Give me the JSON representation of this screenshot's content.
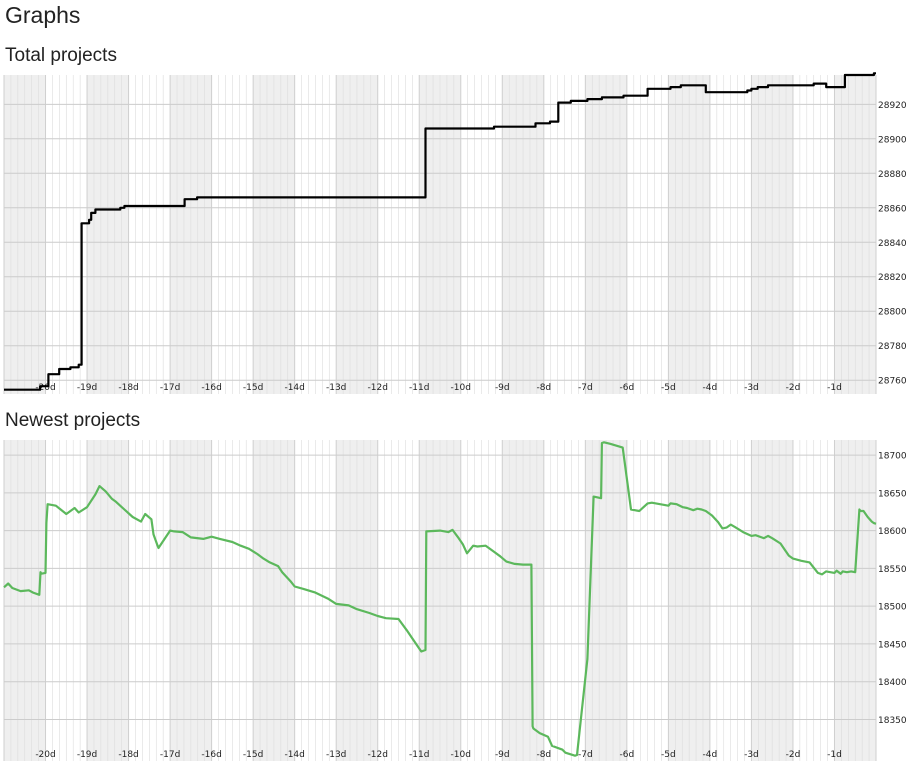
{
  "page": {
    "title": "Graphs"
  },
  "chart_data": [
    {
      "type": "line",
      "title": "Total projects",
      "color": "#000000",
      "xlabel": "",
      "ylabel": "",
      "xlim": [
        -21,
        0
      ],
      "ylim": [
        28752,
        28937
      ],
      "x_ticks": [
        -20,
        -19,
        -18,
        -17,
        -16,
        -15,
        -14,
        -13,
        -12,
        -11,
        -10,
        -9,
        -8,
        -7,
        -6,
        -5,
        -4,
        -3,
        -2,
        -1
      ],
      "x_tick_labels": [
        "-20d",
        "-19d",
        "-18d",
        "-17d",
        "-16d",
        "-15d",
        "-14d",
        "-13d",
        "-12d",
        "-11d",
        "-10d",
        "-9d",
        "-8d",
        "-7d",
        "-6d",
        "-5d",
        "-4d",
        "-3d",
        "-2d",
        "-1d"
      ],
      "y_ticks": [
        28760,
        28780,
        28800,
        28820,
        28840,
        28860,
        28880,
        28900,
        28920
      ],
      "y_tick_labels": [
        "28760",
        "28780",
        "28800",
        "28820",
        "28840",
        "28860",
        "28880",
        "28900",
        "28920"
      ],
      "shaded_day_ranges": [
        [
          -21,
          -20
        ],
        [
          -19,
          -18
        ],
        [
          -17,
          -16
        ],
        [
          -15,
          -14
        ],
        [
          -13,
          -12
        ],
        [
          -11,
          -10
        ],
        [
          -9,
          -8
        ],
        [
          -7,
          -6
        ],
        [
          -5,
          -4
        ],
        [
          -3,
          -2
        ],
        [
          -1,
          0
        ]
      ],
      "series": [
        {
          "name": "Total projects",
          "x": [
            -21.0,
            -20.13,
            -20.13,
            -19.93,
            -19.93,
            -19.67,
            -19.67,
            -19.4,
            -19.4,
            -19.2,
            -19.2,
            -19.13,
            -19.13,
            -18.95,
            -18.95,
            -18.9,
            -18.9,
            -18.8,
            -18.8,
            -18.2,
            -18.2,
            -18.1,
            -18.1,
            -17.92,
            -17.92,
            -16.65,
            -16.65,
            -16.35,
            -16.35,
            -10.85,
            -10.85,
            -9.2,
            -9.2,
            -8.2,
            -8.2,
            -7.85,
            -7.85,
            -7.65,
            -7.65,
            -7.35,
            -7.35,
            -6.95,
            -6.95,
            -6.6,
            -6.6,
            -6.08,
            -6.08,
            -5.5,
            -5.5,
            -4.95,
            -4.95,
            -4.7,
            -4.7,
            -4.1,
            -4.1,
            -3.1,
            -3.1,
            -3.0,
            -3.0,
            -2.85,
            -2.85,
            -2.6,
            -2.6,
            -1.5,
            -1.5,
            -1.2,
            -1.2,
            -0.75,
            -0.75,
            -0.65,
            -0.65,
            -0.05,
            -0.05,
            0.0
          ],
          "y": [
            28754.5,
            28754.5,
            28756.5,
            28756.5,
            28763.5,
            28763.5,
            28766.5,
            28766.5,
            28767.5,
            28767.5,
            28769,
            28769,
            28851,
            28851,
            28853,
            28853,
            28857,
            28857,
            28859,
            28859,
            28860,
            28860,
            28861,
            28861,
            28861,
            28861,
            28865,
            28865,
            28866,
            28866,
            28906,
            28906,
            28907,
            28907,
            28909,
            28909,
            28910,
            28910,
            28921,
            28921,
            28922,
            28922,
            28923,
            28923,
            28924,
            28924,
            28925,
            28925,
            28929,
            28929,
            28930,
            28930,
            28931,
            28931,
            28927,
            28927,
            28928,
            28928,
            28929,
            28929,
            28930,
            28930,
            28931,
            28931,
            28932,
            28932,
            28930,
            28930,
            28937,
            28937,
            28937,
            28937,
            28938,
            28938
          ]
        }
      ]
    },
    {
      "type": "line",
      "title": "Newest projects",
      "color": "#5cb85c",
      "xlabel": "",
      "ylabel": "",
      "xlim": [
        -21,
        0
      ],
      "ylim": [
        18295,
        18720
      ],
      "x_ticks": [
        -20,
        -19,
        -18,
        -17,
        -16,
        -15,
        -14,
        -13,
        -12,
        -11,
        -10,
        -9,
        -8,
        -7,
        -6,
        -5,
        -4,
        -3,
        -2,
        -1
      ],
      "x_tick_labels": [
        "-20d",
        "-19d",
        "-18d",
        "-17d",
        "-16d",
        "-15d",
        "-14d",
        "-13d",
        "-12d",
        "-11d",
        "-10d",
        "-9d",
        "-8d",
        "-7d",
        "-6d",
        "-5d",
        "-4d",
        "-3d",
        "-2d",
        "-1d"
      ],
      "y_ticks": [
        18350,
        18400,
        18450,
        18500,
        18550,
        18600,
        18650,
        18700
      ],
      "y_tick_labels": [
        "18350",
        "18400",
        "18450",
        "18500",
        "18550",
        "18600",
        "18650",
        "18700"
      ],
      "shaded_day_ranges": [
        [
          -21,
          -20
        ],
        [
          -19,
          -18
        ],
        [
          -17,
          -16
        ],
        [
          -15,
          -14
        ],
        [
          -13,
          -12
        ],
        [
          -11,
          -10
        ],
        [
          -9,
          -8
        ],
        [
          -7,
          -6
        ],
        [
          -5,
          -4
        ],
        [
          -3,
          -2
        ],
        [
          -1,
          0
        ]
      ],
      "series": [
        {
          "name": "Newest projects",
          "x": [
            -21.0,
            -20.9,
            -20.8,
            -20.6,
            -20.4,
            -20.3,
            -20.15,
            -20.12,
            -20.1,
            -20.0,
            -19.98,
            -19.95,
            -19.75,
            -19.5,
            -19.3,
            -19.2,
            -19.0,
            -18.8,
            -18.7,
            -18.55,
            -18.4,
            -18.3,
            -18.1,
            -17.9,
            -17.7,
            -17.6,
            -17.45,
            -17.4,
            -17.3,
            -17.28,
            -17.0,
            -16.9,
            -16.7,
            -16.5,
            -16.2,
            -16.0,
            -15.8,
            -15.5,
            -15.3,
            -15.1,
            -14.9,
            -14.75,
            -14.6,
            -14.4,
            -14.3,
            -14.1,
            -14.0,
            -13.8,
            -13.5,
            -13.2,
            -13.0,
            -12.7,
            -12.5,
            -12.2,
            -12.0,
            -11.8,
            -11.5,
            -11.3,
            -11.0,
            -10.95,
            -10.85,
            -10.83,
            -10.5,
            -10.3,
            -10.2,
            -10.05,
            -9.95,
            -9.85,
            -9.7,
            -9.6,
            -9.4,
            -9.2,
            -9.05,
            -8.9,
            -8.7,
            -8.5,
            -8.3,
            -8.27,
            -8.25,
            -8.1,
            -7.9,
            -7.8,
            -7.55,
            -7.5,
            -7.48,
            -7.25,
            -7.2,
            -6.95,
            -6.8,
            -6.62,
            -6.6,
            -6.55,
            -6.4,
            -6.1,
            -5.9,
            -5.7,
            -5.5,
            -5.4,
            -5.2,
            -5.0,
            -4.95,
            -4.8,
            -4.65,
            -4.55,
            -4.4,
            -4.3,
            -4.2,
            -4.1,
            -3.95,
            -3.8,
            -3.7,
            -3.6,
            -3.5,
            -3.4,
            -3.2,
            -3.0,
            -2.9,
            -2.7,
            -2.6,
            -2.5,
            -2.3,
            -2.2,
            -2.1,
            -2.0,
            -1.8,
            -1.6,
            -1.4,
            -1.3,
            -1.2,
            -1.0,
            -0.95,
            -0.85,
            -0.8,
            -0.7,
            -0.6,
            -0.5,
            -0.4,
            -0.37,
            -0.3,
            -0.2,
            -0.1,
            -0.05,
            0.0
          ],
          "y": [
            18525,
            18530,
            18524,
            18520,
            18521,
            18518,
            18515,
            18545,
            18543,
            18544,
            18610,
            18635,
            18633,
            18622,
            18630,
            18624,
            18631,
            18648,
            18659,
            18652,
            18642,
            18638,
            18628,
            18618,
            18612,
            18622,
            18615,
            18595,
            18580,
            18577,
            18600,
            18599,
            18598,
            18591,
            18589,
            18592,
            18589,
            18585,
            18580,
            18576,
            18569,
            18563,
            18558,
            18553,
            18545,
            18533,
            18526,
            18523,
            18518,
            18510,
            18503,
            18501,
            18496,
            18491,
            18487,
            18484,
            18483,
            18468,
            18444,
            18440,
            18442,
            18599,
            18600,
            18598,
            18601,
            18590,
            18582,
            18570,
            18580,
            18579,
            18580,
            18572,
            18566,
            18559,
            18556,
            18555,
            18555,
            18341,
            18338,
            18332,
            18327,
            18315,
            18310,
            18307,
            18306,
            18302,
            18303,
            18430,
            18645,
            18643,
            18716,
            18717,
            18715,
            18710,
            18628,
            18626,
            18636,
            18637,
            18635,
            18633,
            18636,
            18635,
            18631,
            18630,
            18627,
            18629,
            18628,
            18626,
            18620,
            18611,
            18603,
            18604,
            18608,
            18605,
            18598,
            18593,
            18594,
            18590,
            18593,
            18590,
            18583,
            18575,
            18567,
            18563,
            18560,
            18558,
            18544,
            18542,
            18546,
            18544,
            18547,
            18543,
            18546,
            18545,
            18546,
            18545,
            18628,
            18626,
            18626,
            18618,
            18612,
            18610,
            18609
          ]
        }
      ]
    }
  ]
}
